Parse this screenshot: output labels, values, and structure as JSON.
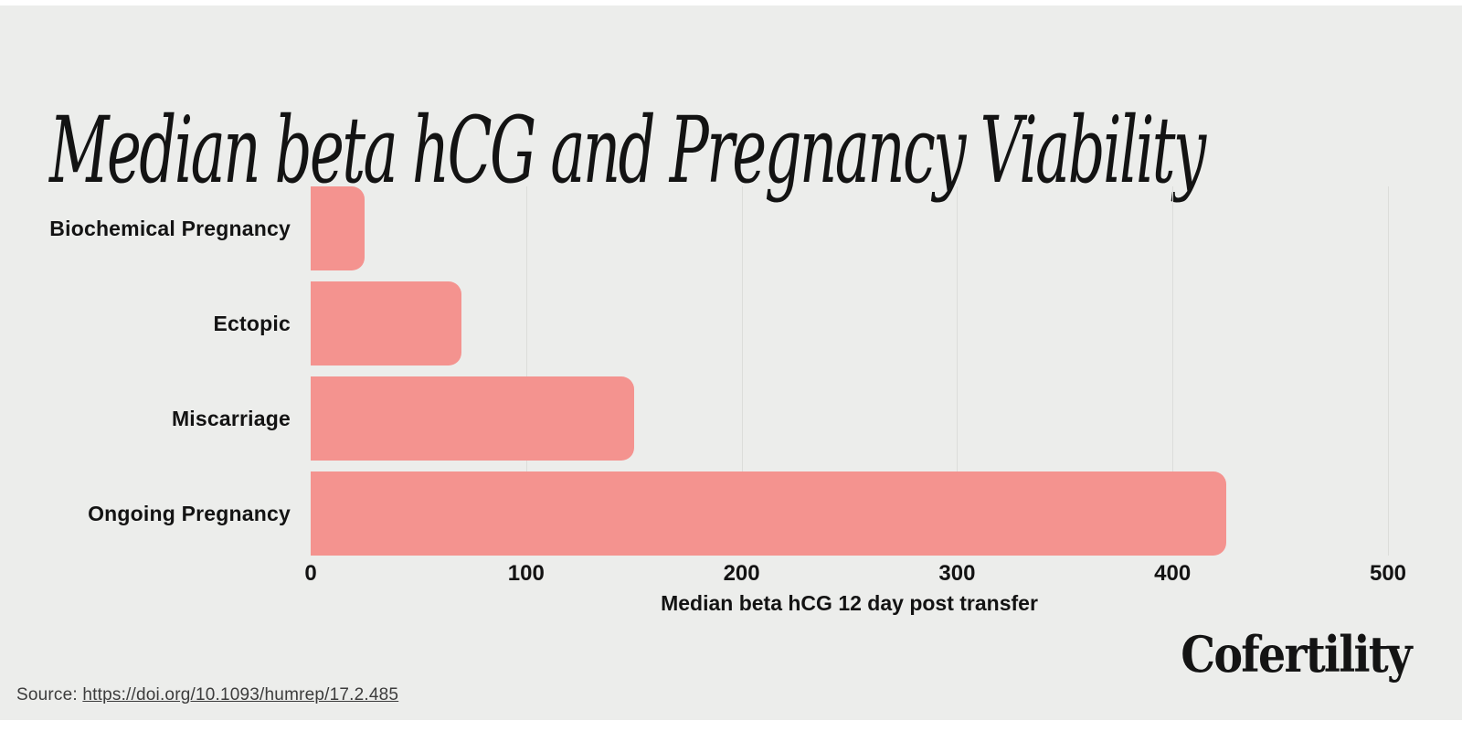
{
  "page": {
    "background_color": "#ECEDEB",
    "title": "Median beta hCG and Pregnancy Viability",
    "logo_text": "Cofertility",
    "source": {
      "label": "Source:",
      "url_text": "https://doi.org/10.1093/humrep/17.2.485"
    }
  },
  "colors": {
    "bar": "#F4938F",
    "gridline": "#DCDDDA",
    "text": "#131313",
    "source_text": "#3C3C3C"
  },
  "chart_data": {
    "type": "bar",
    "orientation": "horizontal",
    "title": "Median beta hCG and Pregnancy Viability",
    "categories": [
      "Biochemical Pregnancy",
      "Ectopic",
      "Miscarriage",
      "Ongoing Pregnancy"
    ],
    "values": [
      25,
      70,
      150,
      425
    ],
    "xlabel": "Median beta hCG 12 day post transfer",
    "xlim": [
      0,
      500
    ],
    "xticks": [
      0,
      100,
      200,
      300,
      400,
      500
    ],
    "grid": true,
    "legend_position": "none"
  }
}
